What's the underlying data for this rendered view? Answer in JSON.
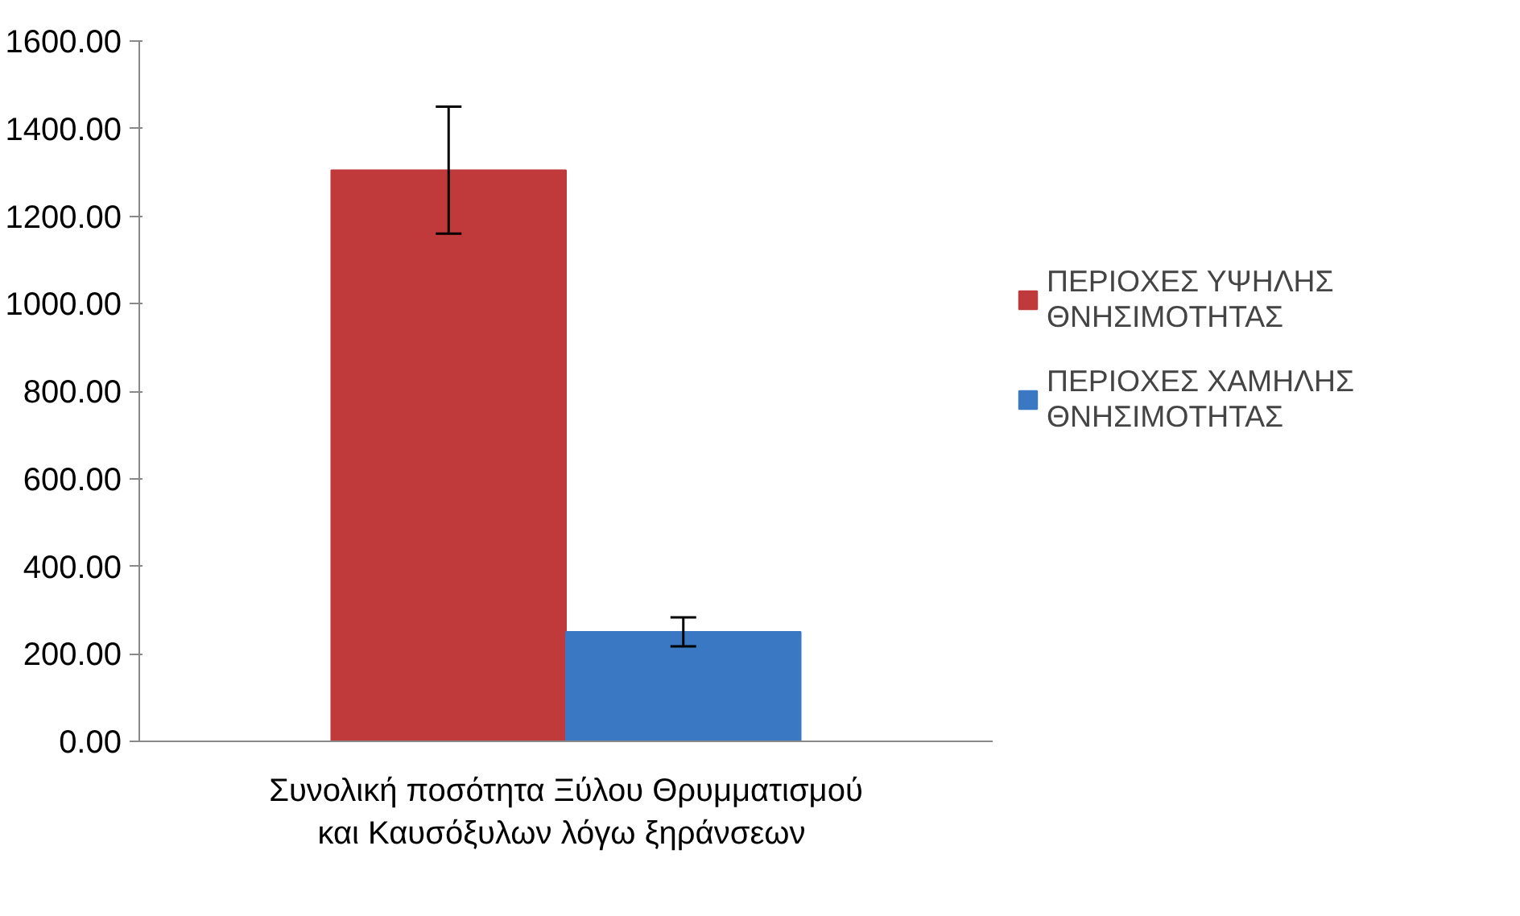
{
  "chart_data": {
    "type": "bar",
    "categories": [
      "Συνολική ποσότητα Ξύλου Θρυμματισμού και Καυσόξυλων  λόγω ξηράνσεων"
    ],
    "series": [
      {
        "name": "ΠΕΡΙΟΧΕΣ ΥΨΗΛΗΣ ΘΝΗΣΙΜΟΤΗΤΑΣ",
        "color": "#c0393b",
        "values": [
          1305
        ],
        "errors": [
          145
        ]
      },
      {
        "name": "ΠΕΡΙΟΧΕΣ ΧΑΜΗΛΗΣ ΘΝΗΣΙΜΟΤΗΤΑΣ",
        "color": "#3a78c4",
        "values": [
          250
        ],
        "errors": [
          33
        ]
      }
    ],
    "ylim": [
      0,
      1600
    ],
    "yticks": [
      {
        "value": 0,
        "label": "0.00"
      },
      {
        "value": 200,
        "label": "200.00"
      },
      {
        "value": 400,
        "label": "400.00"
      },
      {
        "value": 600,
        "label": "600.00"
      },
      {
        "value": 800,
        "label": "800.00"
      },
      {
        "value": 1000,
        "label": "1000.00"
      },
      {
        "value": 1200,
        "label": "1200.00"
      },
      {
        "value": 1400,
        "label": "1400.00"
      },
      {
        "value": 1600,
        "label": "1600.00"
      }
    ],
    "grid": false,
    "legend": "right"
  }
}
